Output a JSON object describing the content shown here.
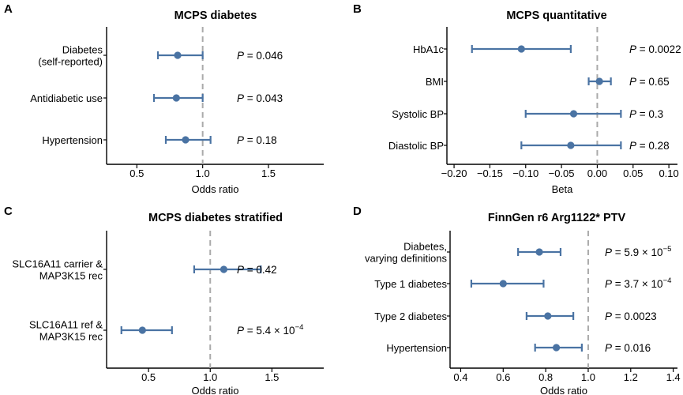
{
  "colors": {
    "series": "#4a73a3",
    "reference": "#aaaaaa",
    "axis": "#000000"
  },
  "chart_data": [
    {
      "letter": "A",
      "type": "forest",
      "title": "MCPS diabetes",
      "xlabel": "Odds ratio",
      "xlim": [
        0.27,
        1.92
      ],
      "xticks": [
        0.5,
        1.0,
        1.5
      ],
      "xtick_labels": [
        "0.5",
        "1.0",
        "1.5"
      ],
      "reference": 1.0,
      "rows": [
        {
          "label": [
            "Diabetes",
            "(self-reported)"
          ],
          "estimate": 0.81,
          "low": 0.66,
          "high": 1.0,
          "p": {
            "prefix": " = ",
            "mantissa": "0.046",
            "exp": ""
          }
        },
        {
          "label": [
            "Antidiabetic use"
          ],
          "estimate": 0.8,
          "low": 0.63,
          "high": 1.0,
          "p": {
            "prefix": " = ",
            "mantissa": "0.043",
            "exp": ""
          }
        },
        {
          "label": [
            "Hypertension"
          ],
          "estimate": 0.87,
          "low": 0.72,
          "high": 1.06,
          "p": {
            "prefix": " = ",
            "mantissa": "0.18",
            "exp": ""
          }
        }
      ]
    },
    {
      "letter": "B",
      "type": "forest",
      "title": "MCPS quantitative",
      "xlabel": "Beta",
      "xlim": [
        -0.21,
        0.112
      ],
      "xticks": [
        -0.2,
        -0.15,
        -0.1,
        -0.05,
        0.0,
        0.05,
        0.1
      ],
      "xtick_labels": [
        "−0.20",
        "−0.15",
        "−0.10",
        "−0.05",
        "0.00",
        "0.05",
        "0.10"
      ],
      "reference": 0.0,
      "rows": [
        {
          "label": [
            "HbA1c"
          ],
          "estimate": -0.106,
          "low": -0.175,
          "high": -0.037,
          "p": {
            "prefix": " = ",
            "mantissa": "0.0022",
            "exp": ""
          }
        },
        {
          "label": [
            "BMI"
          ],
          "estimate": 0.003,
          "low": -0.012,
          "high": 0.019,
          "p": {
            "prefix": " = ",
            "mantissa": "0.65",
            "exp": ""
          }
        },
        {
          "label": [
            "Systolic BP"
          ],
          "estimate": -0.033,
          "low": -0.1,
          "high": 0.033,
          "p": {
            "prefix": " = ",
            "mantissa": "0.3",
            "exp": ""
          }
        },
        {
          "label": [
            "Diastolic BP"
          ],
          "estimate": -0.037,
          "low": -0.106,
          "high": 0.033,
          "p": {
            "prefix": " = ",
            "mantissa": "0.28",
            "exp": ""
          }
        }
      ]
    },
    {
      "letter": "C",
      "type": "forest",
      "title": "MCPS diabetes stratified",
      "xlabel": "Odds ratio",
      "xlim": [
        0.16,
        1.92
      ],
      "xticks": [
        0.5,
        1.0,
        1.5
      ],
      "xtick_labels": [
        "0.5",
        "1.0",
        "1.5"
      ],
      "reference": 1.0,
      "rows": [
        {
          "label": [
            "SLC16A11 carrier &",
            "MAP3K15 rec"
          ],
          "estimate": 1.11,
          "low": 0.87,
          "high": 1.41,
          "p": {
            "prefix": " = ",
            "mantissa": "0.42",
            "exp": ""
          }
        },
        {
          "label": [
            "SLC16A11 ref &",
            "MAP3K15 rec"
          ],
          "estimate": 0.45,
          "low": 0.28,
          "high": 0.69,
          "p": {
            "prefix": " = 5.4 × 10",
            "mantissa": "",
            "exp": "−4"
          }
        }
      ]
    },
    {
      "letter": "D",
      "type": "forest",
      "title": "FinnGen r6 Arg1122* PTV",
      "xlabel": "Odds ratio",
      "xlim": [
        0.35,
        1.42
      ],
      "xticks": [
        0.4,
        0.6,
        0.8,
        1.0,
        1.2,
        1.4
      ],
      "xtick_labels": [
        "0.4",
        "0.6",
        "0.8",
        "1.0",
        "1.2",
        "1.4"
      ],
      "reference": 1.0,
      "rows": [
        {
          "label": [
            "Diabetes,",
            "varying definitions"
          ],
          "estimate": 0.77,
          "low": 0.67,
          "high": 0.87,
          "p": {
            "prefix": " = 5.9 × 10",
            "mantissa": "",
            "exp": "−5"
          }
        },
        {
          "label": [
            "Type 1 diabetes"
          ],
          "estimate": 0.6,
          "low": 0.45,
          "high": 0.79,
          "p": {
            "prefix": " = 3.7 × 10",
            "mantissa": "",
            "exp": "−4"
          }
        },
        {
          "label": [
            "Type 2 diabetes"
          ],
          "estimate": 0.81,
          "low": 0.71,
          "high": 0.93,
          "p": {
            "prefix": " = ",
            "mantissa": "0.0023",
            "exp": ""
          }
        },
        {
          "label": [
            "Hypertension"
          ],
          "estimate": 0.85,
          "low": 0.75,
          "high": 0.97,
          "p": {
            "prefix": " = ",
            "mantissa": "0.016",
            "exp": ""
          }
        }
      ]
    }
  ]
}
